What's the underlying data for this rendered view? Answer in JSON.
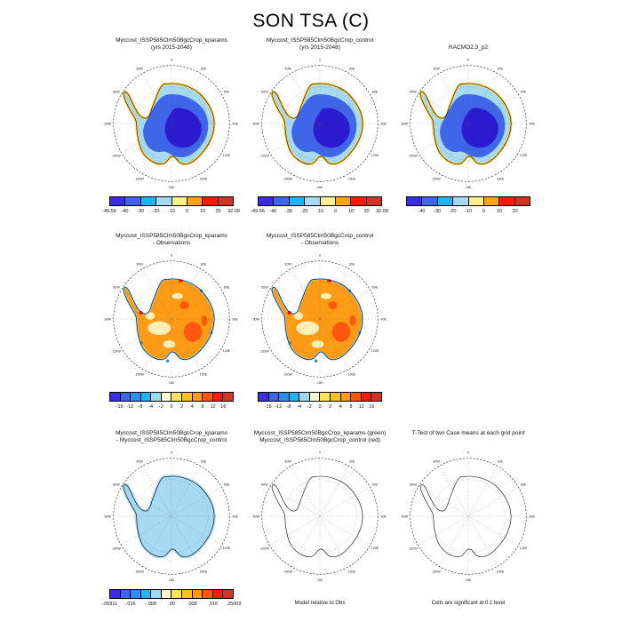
{
  "title": "SON TSA (C)",
  "map_tick_labels": [
    "0",
    "30E",
    "60E",
    "90E",
    "120E",
    "150E",
    "180",
    "150W",
    "120W",
    "90W",
    "60W",
    "30W"
  ],
  "palettes": {
    "temp8": [
      "#3a2ee0",
      "#3f66e8",
      "#1fb4f5",
      "#a6d9f2",
      "#fff08c",
      "#ffa318",
      "#ff1a00",
      "#cf3527"
    ],
    "diff12": [
      "#3a2ee0",
      "#3f66e8",
      "#2e8ef0",
      "#1fb4f5",
      "#9fd8f0",
      "#fbf8d0",
      "#ffe45e",
      "#ffc022",
      "#ff9c16",
      "#ff5710",
      "#fb1a08",
      "#cf3527"
    ]
  },
  "panels": [
    {
      "title1": "Myccost_ISSP585Clm50BgcCrop_kparams",
      "title2": "(yrs 2015-2048)",
      "variant": "cold",
      "colorbar": {
        "palette": "temp8",
        "ticks": [
          "-49.56",
          "-40",
          "-30",
          "-20",
          "-10",
          "0",
          "10",
          "20",
          "32.09"
        ],
        "positions": [
          0,
          0.125,
          0.25,
          0.375,
          0.5,
          0.625,
          0.75,
          0.875,
          1
        ]
      }
    },
    {
      "title1": "Myccost_ISSP585Clm50BgcCrop_control",
      "title2": "(yrs 2015-2048)",
      "variant": "cold",
      "colorbar": {
        "palette": "temp8",
        "ticks": [
          "-49.56",
          "-40",
          "-30",
          "-20",
          "-10",
          "0",
          "10",
          "20",
          "32.09"
        ],
        "positions": [
          0,
          0.125,
          0.25,
          0.375,
          0.5,
          0.625,
          0.75,
          0.875,
          1
        ]
      }
    },
    {
      "title1": "",
      "title2": "RACMO2.3_p2",
      "variant": "cold",
      "colorbar": {
        "palette": "temp8",
        "ticks": [
          "-40",
          "-30",
          "-20",
          "-10",
          "0",
          "10",
          "20"
        ],
        "positions": [
          0.125,
          0.25,
          0.375,
          0.5,
          0.625,
          0.75,
          0.875
        ]
      }
    },
    {
      "title1": "Myccost_ISSP585Clm50BgcCrop_kparams",
      "title2": "- Observations",
      "variant": "warm",
      "colorbar": {
        "palette": "diff12",
        "ticks": [
          "-16",
          "-12",
          "-8",
          "-4",
          "-2",
          "0",
          "2",
          "4",
          "8",
          "12",
          "16"
        ],
        "positions": [
          0.0833,
          0.1667,
          0.25,
          0.3333,
          0.4167,
          0.5,
          0.5833,
          0.6667,
          0.75,
          0.8333,
          0.9167
        ]
      }
    },
    {
      "title1": "Myccost_ISSP585Clm50BgcCrop_control",
      "title2": "- Observations",
      "variant": "warm",
      "colorbar": {
        "palette": "diff12",
        "ticks": [
          "-16",
          "-12",
          "-8",
          "-4",
          "-2",
          "0",
          "2",
          "4",
          "8",
          "12",
          "16"
        ],
        "positions": [
          0.0833,
          0.1667,
          0.25,
          0.3333,
          0.4167,
          0.5,
          0.5833,
          0.6667,
          0.75,
          0.8333,
          0.9167
        ]
      }
    },
    {
      "title1": "Myccost_ISSP585Clm50BgcCrop_kparams",
      "title2": "- Myccost_ISSP585Clm50BgcCrop_control",
      "variant": "lightfill",
      "colorbar": {
        "palette": "diff12",
        "ticks": [
          "-.05811",
          "-.016",
          "-.008",
          ".00",
          ".008",
          ".016",
          ".25009"
        ],
        "positions": [
          0,
          0.1667,
          0.3333,
          0.5,
          0.6667,
          0.8333,
          1
        ]
      }
    },
    {
      "title1": "Myccost_ISSP585Clm50BgcCrop_kparams (green)",
      "title2": "Myccost_ISSP585Clm50BgcCrop_control (red)",
      "variant": "outline",
      "footnote": "Model relative to Obs"
    },
    {
      "title1": "T-Test of two Case means at each grid point",
      "title2": "",
      "variant": "outline",
      "footnote": "Cells are significant at 0.1 level"
    }
  ],
  "chart_data": [
    {
      "type": "heatmap",
      "title": "Myccost_ISSP585Clm50BgcCrop_kparams (yrs 2015-2048)",
      "region": "Antarctica, south polar stereographic",
      "units": "C",
      "colorbar_ticks": [
        -49.56,
        -40,
        -30,
        -20,
        -10,
        0,
        10,
        20,
        32.09
      ],
      "pattern": "interior -40s (dark blue-violet), mid-plateau -30s, coastal band -20 to -10 (light blue), coastline fringe near 0 (yellow)"
    },
    {
      "type": "heatmap",
      "title": "Myccost_ISSP585Clm50BgcCrop_control (yrs 2015-2048)",
      "region": "Antarctica, south polar stereographic",
      "units": "C",
      "colorbar_ticks": [
        -49.56,
        -40,
        -30,
        -20,
        -10,
        0,
        10,
        20,
        32.09
      ],
      "pattern": "nearly identical cold field to kparams panel"
    },
    {
      "type": "heatmap",
      "title": "RACMO2.3_p2",
      "region": "Antarctica, south polar stereographic",
      "units": "C",
      "colorbar_ticks": [
        -40,
        -30,
        -20,
        -10,
        0,
        10,
        20
      ],
      "pattern": "reference cold field, dark blue interior with light blue coast"
    },
    {
      "type": "heatmap",
      "title": "Myccost_ISSP585Clm50BgcCrop_kparams - Observations",
      "units": "C",
      "colorbar_ticks": [
        -16,
        -12,
        -8,
        -4,
        -2,
        0,
        2,
        4,
        8,
        12,
        16
      ],
      "pattern": "mostly +2 to +8 warm bias (orange), +8 to +12 patches (red) in East Antarctica, 0 to +2 (pale) over West Antarctica/Ross area, small negative specks at coast"
    },
    {
      "type": "heatmap",
      "title": "Myccost_ISSP585Clm50BgcCrop_control - Observations",
      "units": "C",
      "colorbar_ticks": [
        -16,
        -12,
        -8,
        -4,
        -2,
        0,
        2,
        4,
        8,
        12,
        16
      ],
      "pattern": "same warm-bias pattern as kparams minus observations"
    },
    {
      "type": "heatmap",
      "title": "Myccost_ISSP585Clm50BgcCrop_kparams - Myccost_ISSP585Clm50BgcCrop_control",
      "units": "C",
      "colorbar_ticks": [
        -0.05811,
        -0.016,
        -0.008,
        0,
        0.008,
        0.016,
        0.25009
      ],
      "pattern": "uniform slight negative difference (single light-blue class) over whole continent"
    },
    {
      "type": "heatmap",
      "title": "Myccost_ISSP585Clm50BgcCrop_kparams (green) / Myccost_ISSP585Clm50BgcCrop_control (red)",
      "note": "Model relative to Obs",
      "pattern": "contour outlines only, coincident along coastline"
    },
    {
      "type": "heatmap",
      "title": "T-Test of two Case means at each grid point",
      "note": "Cells are significant at 0.1 level",
      "pattern": "no significant cells shaded; outline only"
    }
  ]
}
